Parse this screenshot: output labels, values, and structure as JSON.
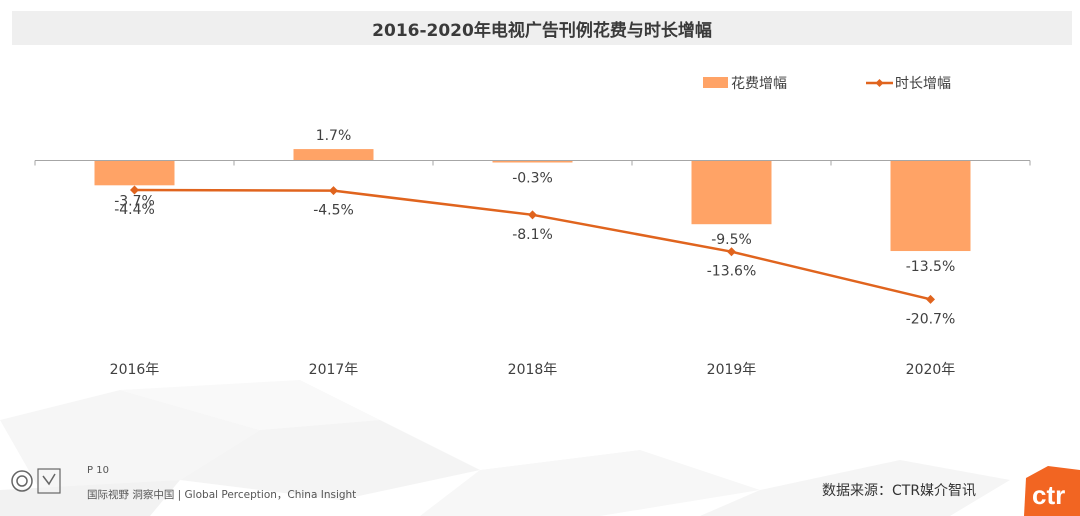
{
  "chart_data": {
    "type": "bar",
    "title": "2016-2020年电视广告刊例花费与时长增幅",
    "categories": [
      "2016年",
      "2017年",
      "2018年",
      "2019年",
      "2020年"
    ],
    "series": [
      {
        "name": "花费增幅",
        "kind": "bar",
        "values": [
          -3.7,
          1.7,
          -0.3,
          -9.5,
          -13.5
        ],
        "labels": [
          "-3.7%",
          "1.7%",
          "-0.3%",
          "-9.5%",
          "-13.5%"
        ],
        "color": "#ffa366"
      },
      {
        "name": "时长增幅",
        "kind": "line",
        "values": [
          -4.4,
          -4.5,
          -8.1,
          -13.6,
          -20.7
        ],
        "labels": [
          "-4.4%",
          "-4.5%",
          "-8.1%",
          "-13.6%",
          "-20.7%"
        ],
        "color": "#e0641e"
      }
    ],
    "ylim": [
      -29,
      12
    ],
    "xlabel": "",
    "ylabel": "",
    "legend": "top-right",
    "grid": false
  },
  "footer": {
    "page": "P 10",
    "slogan": "国际视野  洞察中国 |  Global Perception，China Insight",
    "source": "数据来源：CTR媒介智讯",
    "brand": "ctr"
  },
  "colors": {
    "bar": "#ffa366",
    "line": "#e0641e",
    "axis": "#a6a6a6",
    "brand": "#f26522"
  }
}
